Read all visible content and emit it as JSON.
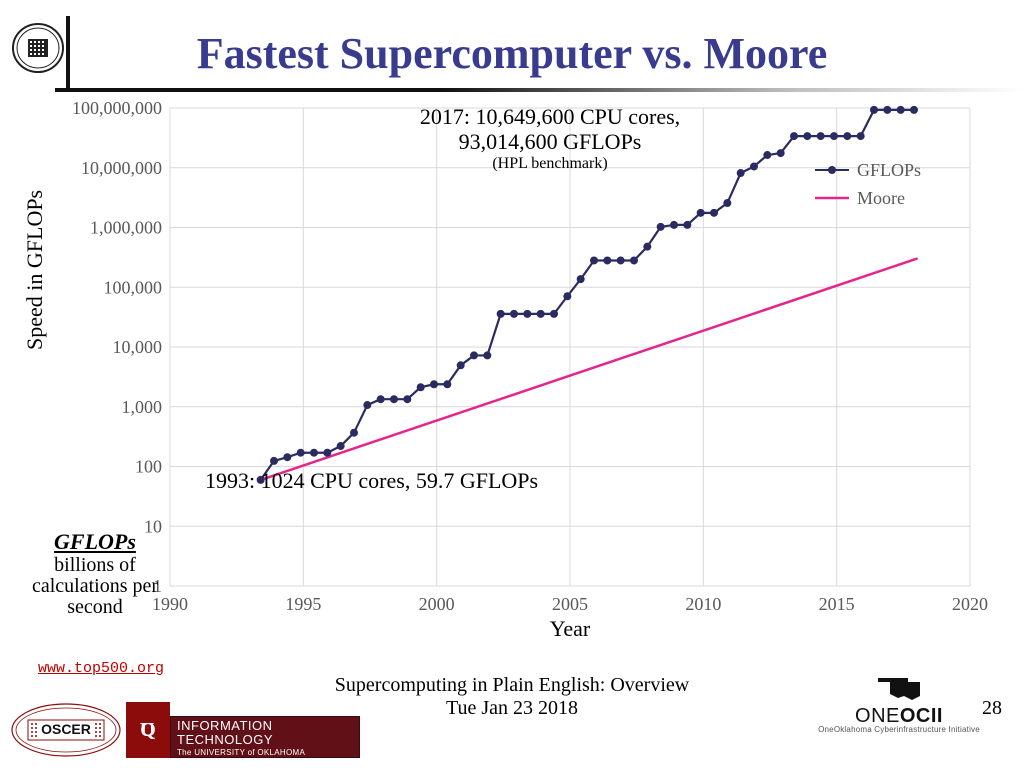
{
  "title": "Fastest Supercomputer vs. Moore",
  "chart": {
    "type": "line",
    "xlim": [
      1990,
      2020
    ],
    "xticks": [
      1990,
      1995,
      2000,
      2005,
      2010,
      2015,
      2020
    ],
    "ylim_log10": [
      0,
      8
    ],
    "ytick_labels": [
      "1",
      "10",
      "100",
      "1,000",
      "10,000",
      "100,000",
      "1,000,000",
      "10,000,000",
      "100,000,000"
    ],
    "ylabel": "Speed  in  GFLOPs",
    "xlabel": "Year",
    "background_color": "#ffffff",
    "grid_color": "#d9d9d9",
    "series": {
      "gflops": {
        "label": "GFLOPs",
        "color": "#2a2b61",
        "marker": "circle",
        "marker_size": 4,
        "line_width": 2.2,
        "points": [
          [
            1993.4,
            59.7
          ],
          [
            1993.9,
            124
          ],
          [
            1994.4,
            143
          ],
          [
            1994.9,
            170
          ],
          [
            1995.4,
            170
          ],
          [
            1995.9,
            170
          ],
          [
            1996.4,
            220
          ],
          [
            1996.9,
            368
          ],
          [
            1997.4,
            1068
          ],
          [
            1997.9,
            1338
          ],
          [
            1998.4,
            1338
          ],
          [
            1998.9,
            1338
          ],
          [
            1999.4,
            2121
          ],
          [
            1999.9,
            2379
          ],
          [
            2000.4,
            2379
          ],
          [
            2000.9,
            4938
          ],
          [
            2001.4,
            7226
          ],
          [
            2001.9,
            7226
          ],
          [
            2002.4,
            35860
          ],
          [
            2002.9,
            35860
          ],
          [
            2003.4,
            35860
          ],
          [
            2003.9,
            35860
          ],
          [
            2004.4,
            35860
          ],
          [
            2004.9,
            70720
          ],
          [
            2005.4,
            136800
          ],
          [
            2005.9,
            280600
          ],
          [
            2006.4,
            280600
          ],
          [
            2006.9,
            280600
          ],
          [
            2007.4,
            280600
          ],
          [
            2007.9,
            478200
          ],
          [
            2008.4,
            1026000
          ],
          [
            2008.9,
            1105000
          ],
          [
            2009.4,
            1105000
          ],
          [
            2009.9,
            1759000
          ],
          [
            2010.4,
            1759000
          ],
          [
            2010.9,
            2566000
          ],
          [
            2011.4,
            8162000
          ],
          [
            2011.9,
            10510000
          ],
          [
            2012.4,
            16320000
          ],
          [
            2012.9,
            17590000
          ],
          [
            2013.4,
            33860000
          ],
          [
            2013.9,
            33860000
          ],
          [
            2014.4,
            33860000
          ],
          [
            2014.9,
            33860000
          ],
          [
            2015.4,
            33860000
          ],
          [
            2015.9,
            33860000
          ],
          [
            2016.4,
            93010000
          ],
          [
            2016.9,
            93010000
          ],
          [
            2017.4,
            93010000
          ],
          [
            2017.9,
            93014600
          ]
        ]
      },
      "moore": {
        "label": "Moore",
        "color": "#e6258b",
        "line_width": 2.5,
        "points": [
          [
            1993.4,
            59.7
          ],
          [
            2018,
            300000
          ]
        ]
      }
    },
    "annot_top": {
      "line1": "2017: 10,649,600 CPU cores,",
      "line2": "93,014,600 GFLOPs",
      "sub": "(HPL benchmark)"
    },
    "annot_bottom": "1993: 1024 CPU cores, 59.7 GFLOPs"
  },
  "gflops_note": {
    "heading": "GFLOPs",
    "body": "billions of calculations per second"
  },
  "source_link": "www.top500.org",
  "footer": {
    "line1": "Supercomputing in Plain English: Overview",
    "line2": "Tue Jan 23 2018"
  },
  "slide_number": "28",
  "logos": {
    "oscer": "OSCER",
    "ou": "OU",
    "it_line1": "INFORMATION TECHNOLOGY",
    "it_line2": "The UNIVERSITY of OKLAHOMA",
    "oneocii_main": "ONEOCII",
    "oneocii_sub": "OneOklahoma Cyberinfrastructure Initiative"
  }
}
